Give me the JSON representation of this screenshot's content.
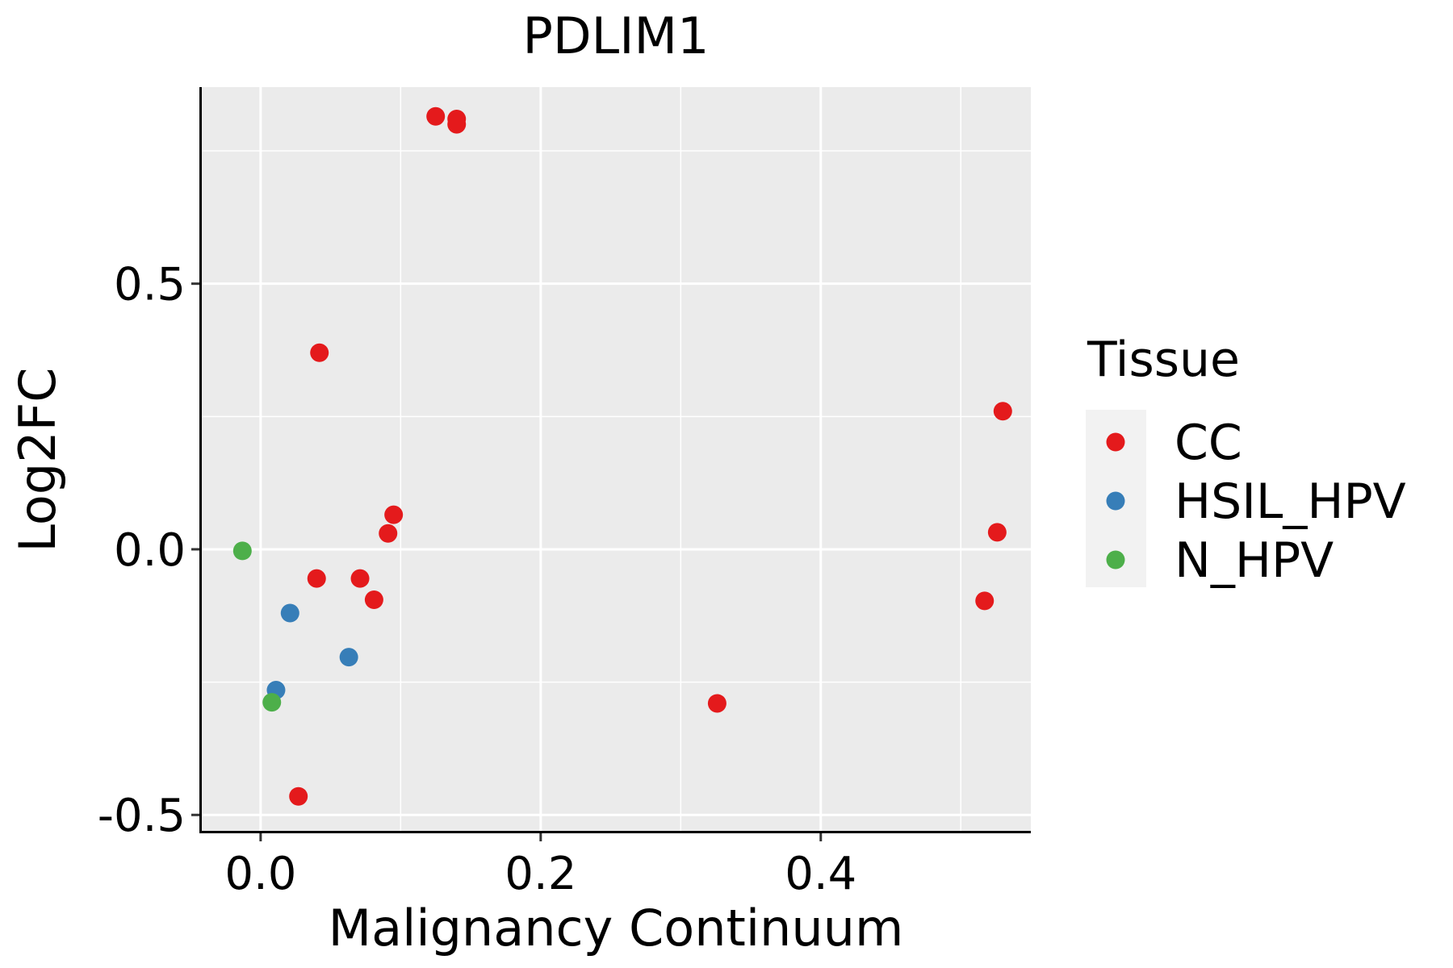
{
  "chart_data": {
    "type": "scatter",
    "title": "PDLIM1",
    "xlabel": "Malignancy Continuum",
    "ylabel": "Log2FC",
    "xlim": [
      -0.042,
      0.55
    ],
    "ylim": [
      -0.53,
      0.87
    ],
    "xticks": [
      0.0,
      0.2,
      0.4
    ],
    "xtick_labels": [
      "0.0",
      "0.2",
      "0.4"
    ],
    "yticks": [
      -0.5,
      0.0,
      0.5
    ],
    "ytick_labels": [
      "-0.5",
      "0.0",
      "0.5"
    ],
    "grid": true,
    "background": "#ebebeb",
    "legend": {
      "title": "Tissue",
      "placement": "right"
    },
    "series": [
      {
        "name": "CC",
        "color": "#e41a1c",
        "points": [
          {
            "x": 0.125,
            "y": 0.815
          },
          {
            "x": 0.14,
            "y": 0.81
          },
          {
            "x": 0.14,
            "y": 0.8
          },
          {
            "x": 0.042,
            "y": 0.37
          },
          {
            "x": 0.095,
            "y": 0.065
          },
          {
            "x": 0.091,
            "y": 0.03
          },
          {
            "x": 0.04,
            "y": -0.055
          },
          {
            "x": 0.071,
            "y": -0.055
          },
          {
            "x": 0.081,
            "y": -0.095
          },
          {
            "x": 0.027,
            "y": -0.465
          },
          {
            "x": 0.326,
            "y": -0.29
          },
          {
            "x": 0.53,
            "y": 0.26
          },
          {
            "x": 0.526,
            "y": 0.032
          },
          {
            "x": 0.517,
            "y": -0.097
          }
        ]
      },
      {
        "name": "HSIL_HPV",
        "color": "#377eb8",
        "points": [
          {
            "x": 0.021,
            "y": -0.12
          },
          {
            "x": 0.063,
            "y": -0.203
          },
          {
            "x": 0.011,
            "y": -0.265
          }
        ]
      },
      {
        "name": "N_HPV",
        "color": "#4daf4a",
        "points": [
          {
            "x": -0.013,
            "y": -0.003
          },
          {
            "x": 0.008,
            "y": -0.288
          }
        ]
      }
    ]
  }
}
